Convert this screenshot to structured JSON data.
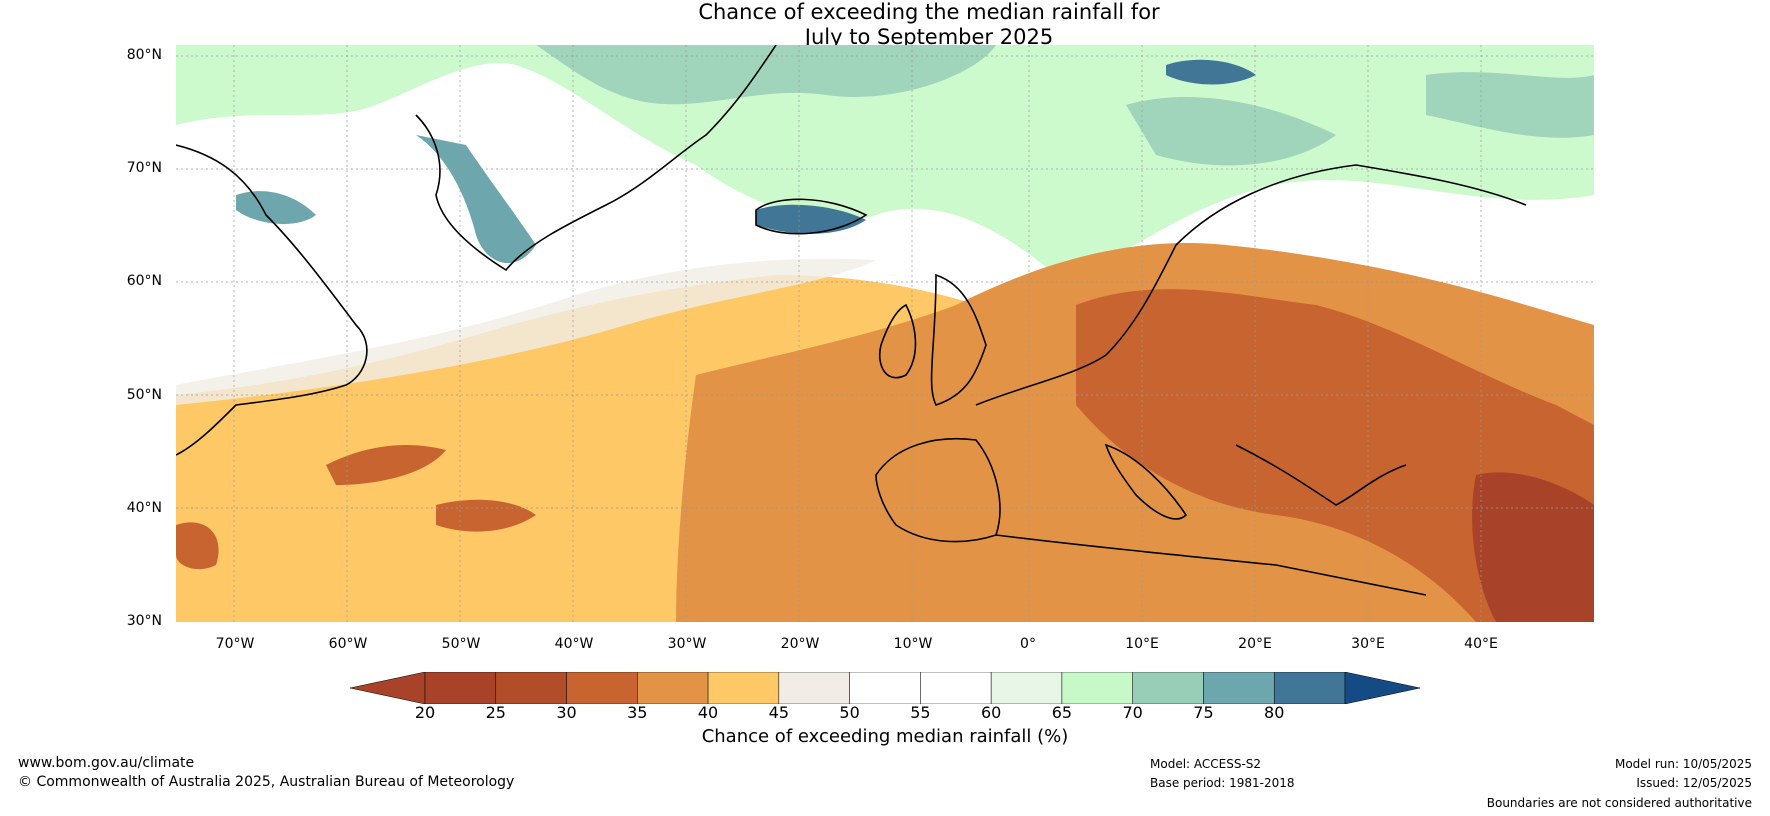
{
  "title": "Chance of exceeding the median rainfall for\nJuly to September 2025",
  "lat_labels": [
    "80°N",
    "70°N",
    "60°N",
    "50°N",
    "40°N",
    "30°N"
  ],
  "lon_labels": [
    "70°W",
    "60°W",
    "50°W",
    "40°W",
    "30°W",
    "20°W",
    "10°W",
    "0°",
    "10°E",
    "20°E",
    "30°E",
    "40°E"
  ],
  "colorbar": {
    "label": "Chance of exceeding median rainfall (%)",
    "ticks": [
      "20",
      "25",
      "30",
      "35",
      "40",
      "45",
      "50",
      "55",
      "60",
      "65",
      "70",
      "75",
      "80"
    ],
    "colors": [
      "#a8432a",
      "#b24d2a",
      "#c8642f",
      "#e39346",
      "#fec866",
      "#f1ede6",
      "#ffffff",
      "#ffffff",
      "#e7f6e6",
      "#c7f9c8",
      "#98cdb7",
      "#6da6ac",
      "#417697"
    ],
    "under_color": "#a8432a",
    "over_color": "#154b85"
  },
  "footer": {
    "website": "www.bom.gov.au/climate",
    "copyright": "© Commonwealth of Australia 2025, Australian Bureau of Meteorology",
    "model": "Model: ACCESS-S2",
    "base_period": "Base period: 1981-2018",
    "model_run": "Model run: 10/05/2025",
    "issued": "Issued: 12/05/2025",
    "disclaimer": "Boundaries are not considered authoritative"
  }
}
